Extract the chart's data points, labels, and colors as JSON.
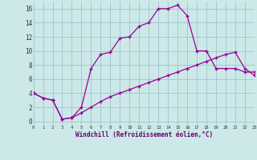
{
  "xlabel": "Windchill (Refroidissement éolien,°C)",
  "x_ticks": [
    0,
    1,
    2,
    3,
    4,
    5,
    6,
    7,
    8,
    9,
    10,
    11,
    12,
    13,
    14,
    15,
    16,
    17,
    18,
    19,
    20,
    21,
    22,
    23
  ],
  "ylim": [
    -0.5,
    17
  ],
  "xlim": [
    0,
    23
  ],
  "yticks": [
    0,
    2,
    4,
    6,
    8,
    10,
    12,
    14,
    16
  ],
  "line1_x": [
    0,
    1,
    2,
    3,
    4,
    5,
    6,
    7,
    8,
    9,
    10,
    11,
    12,
    13,
    14,
    15,
    16,
    17,
    18,
    19,
    20,
    21,
    22,
    23
  ],
  "line1_y": [
    4.0,
    3.3,
    3.0,
    0.3,
    0.5,
    2.0,
    7.5,
    9.5,
    9.8,
    11.8,
    12.0,
    13.5,
    14.0,
    16.0,
    16.0,
    16.5,
    15.0,
    10.0,
    10.0,
    7.5,
    7.5,
    7.5,
    7.0,
    7.0
  ],
  "line2_x": [
    0,
    1,
    2,
    3,
    4,
    5,
    6,
    7,
    8,
    9,
    10,
    11,
    12,
    13,
    14,
    15,
    16,
    17,
    18,
    19,
    20,
    21,
    22,
    23
  ],
  "line2_y": [
    4.0,
    3.3,
    3.0,
    0.3,
    0.5,
    1.2,
    2.0,
    2.8,
    3.5,
    4.0,
    4.5,
    5.0,
    5.5,
    6.0,
    6.5,
    7.0,
    7.5,
    8.0,
    8.5,
    9.0,
    9.5,
    9.8,
    7.5,
    6.5
  ],
  "line_color": "#990099",
  "bg_color": "#cce8e8",
  "grid_color": "#99bbcc",
  "marker": "+"
}
